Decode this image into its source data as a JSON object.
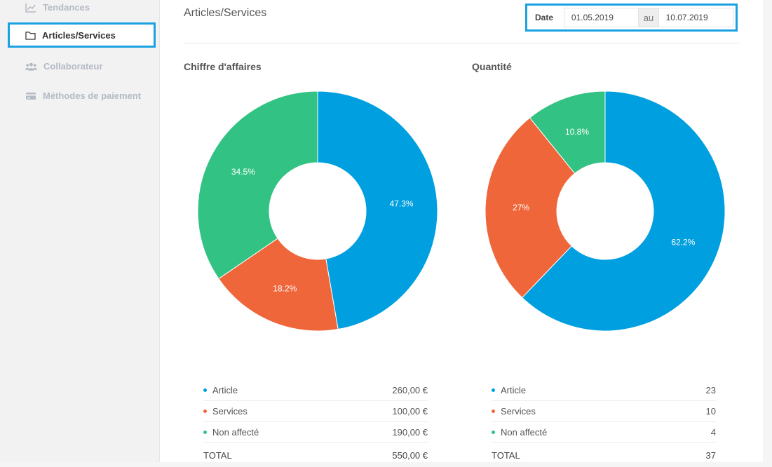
{
  "sidebar": {
    "items": [
      {
        "label": "Tendances",
        "icon": "chart-line-icon"
      },
      {
        "label": "Articles/Services",
        "icon": "folder-icon",
        "active": true
      },
      {
        "label": "Collaborateur",
        "icon": "users-icon"
      },
      {
        "label": "Méthodes de paiement",
        "icon": "credit-card-icon"
      }
    ]
  },
  "header": {
    "title": "Articles/Services",
    "date_label": "Date",
    "date_from": "01.05.2019",
    "date_sep": "au",
    "date_to": "10.07.2019"
  },
  "colors": {
    "article": "#009fe0",
    "services": "#f0663b",
    "non_affecte": "#32c384",
    "accent": "#1aa1e1"
  },
  "chart_data": [
    {
      "type": "pie",
      "title": "Chiffre d'affaires",
      "categories": [
        "Article",
        "Services",
        "Non affecté"
      ],
      "values": [
        260,
        100,
        190
      ],
      "slice_labels": [
        "47.3%",
        "18.2%",
        "34.5%"
      ],
      "legend_values": [
        "260,00 €",
        "100,00 €",
        "190,00 €"
      ],
      "total_label": "TOTAL",
      "total": "550,00 €"
    },
    {
      "type": "pie",
      "title": "Quantité",
      "categories": [
        "Article",
        "Services",
        "Non affecté"
      ],
      "values": [
        23,
        10,
        4
      ],
      "slice_labels": [
        "62.2%",
        "27%",
        "10.8%"
      ],
      "legend_values": [
        "23",
        "10",
        "4"
      ],
      "total_label": "TOTAL",
      "total": "37"
    }
  ]
}
